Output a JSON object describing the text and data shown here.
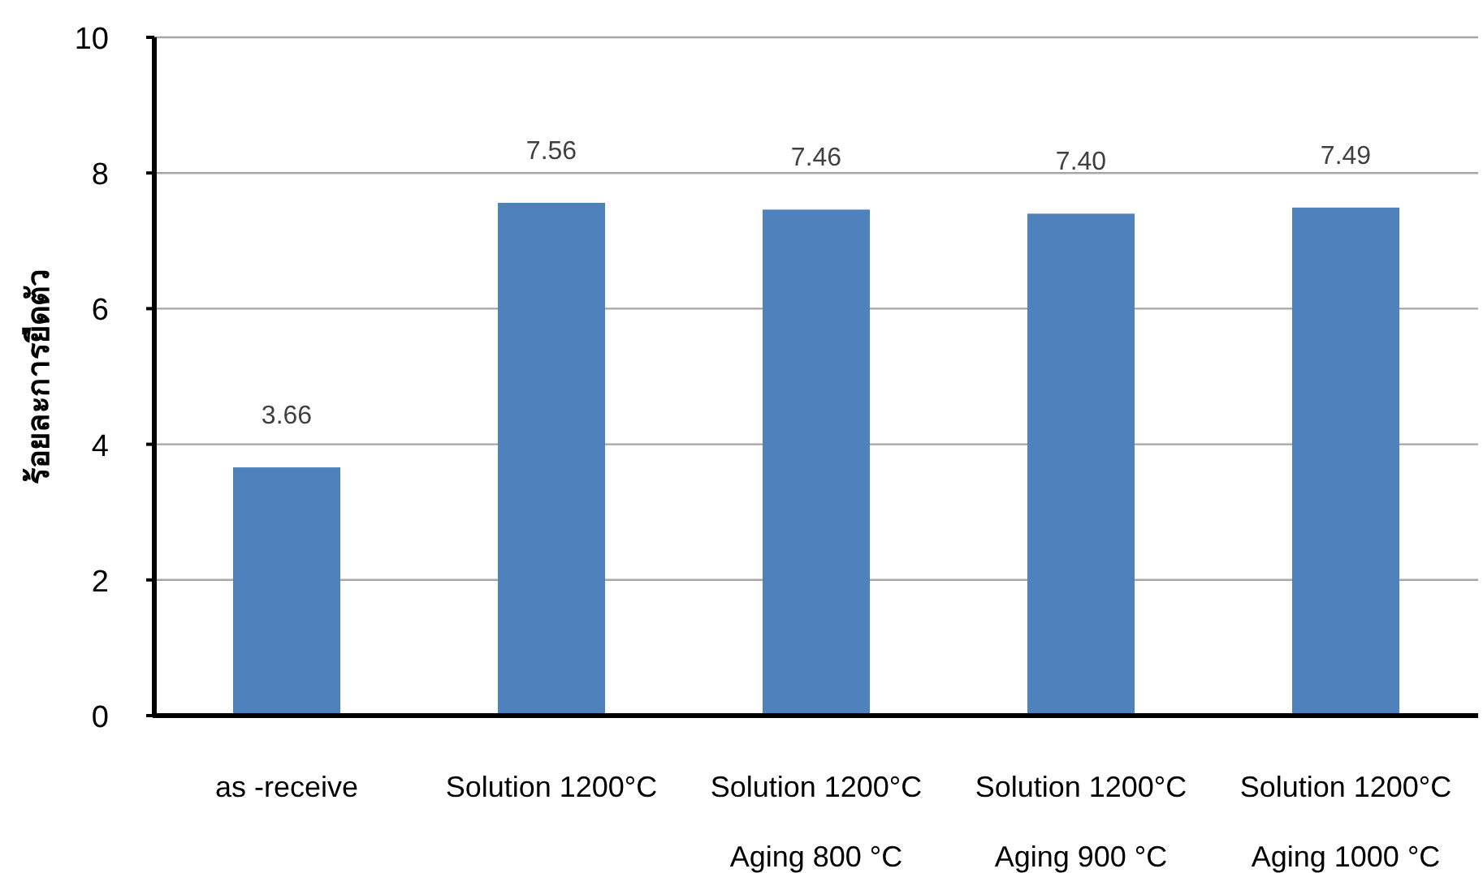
{
  "chart_data": {
    "type": "bar",
    "ylabel": "ร้อยละการยืดตัว",
    "categories": [
      "as -receive",
      "Solution 1200°C",
      "Solution 1200°C\nAging 800 °C",
      "Solution 1200°C\nAging 900 °C",
      "Solution 1200°C\nAging 1000 °C"
    ],
    "values": [
      3.66,
      7.56,
      7.46,
      7.4,
      7.49
    ],
    "value_labels": [
      "3.66",
      "7.56",
      "7.46",
      "7.40",
      "7.49"
    ],
    "color": "#4f81bd",
    "ylim": [
      0,
      10
    ],
    "yticks": [
      0,
      2,
      4,
      6,
      8,
      10
    ],
    "grid": "y"
  }
}
